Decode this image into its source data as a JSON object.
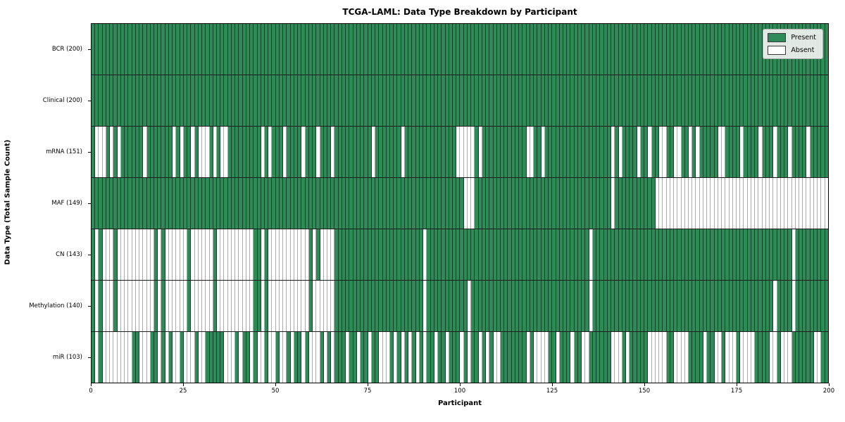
{
  "title": "TCGA-LAML: Data Type Breakdown by Participant",
  "colors": {
    "present": "#2e8b57",
    "absent": "#ffffff",
    "present_cell_border": "rgba(8,40,24,0.75)",
    "absent_cell_border": "#ababab",
    "plot_border": "#000000",
    "legend_background": "#f2f2f2"
  },
  "chart_data": {
    "type": "heatmap",
    "title": "TCGA-LAML: Data Type Breakdown by Participant",
    "xlabel": "Participant",
    "ylabel": "Data Type (Total Sample Count)",
    "x_range": [
      0,
      200
    ],
    "x_ticks": [
      0,
      25,
      50,
      75,
      100,
      125,
      150,
      175,
      200
    ],
    "n_participants": 200,
    "grid": false,
    "legend": {
      "position": "upper right",
      "entries": [
        {
          "label": "Present",
          "color": "#2e8b57"
        },
        {
          "label": "Absent",
          "color": "#ffffff"
        }
      ]
    },
    "value_encoding": {
      "present": 1,
      "absent": 0
    },
    "rows": [
      {
        "label": "BCR (200)",
        "data_type": "BCR",
        "present_total": 200,
        "absent_runs": []
      },
      {
        "label": "Clinical (200)",
        "data_type": "Clinical",
        "present_total": 200,
        "absent_runs": []
      },
      {
        "label": "mRNA (151)",
        "data_type": "mRNA",
        "present_total": 151,
        "absent_runs": [
          [
            1,
            3
          ],
          [
            5,
            5
          ],
          [
            7,
            7
          ],
          [
            14,
            14
          ],
          [
            22,
            22
          ],
          [
            24,
            24
          ],
          [
            27,
            27
          ],
          [
            29,
            31
          ],
          [
            33,
            33
          ],
          [
            35,
            36
          ],
          [
            46,
            46
          ],
          [
            48,
            48
          ],
          [
            52,
            52
          ],
          [
            57,
            57
          ],
          [
            61,
            61
          ],
          [
            65,
            65
          ],
          [
            76,
            76
          ],
          [
            84,
            84
          ],
          [
            99,
            103
          ],
          [
            105,
            105
          ],
          [
            118,
            119
          ],
          [
            122,
            122
          ],
          [
            141,
            141
          ],
          [
            143,
            143
          ],
          [
            148,
            148
          ],
          [
            151,
            151
          ],
          [
            154,
            155
          ],
          [
            158,
            159
          ],
          [
            162,
            162
          ],
          [
            164,
            164
          ],
          [
            170,
            171
          ],
          [
            176,
            176
          ],
          [
            181,
            181
          ],
          [
            185,
            185
          ],
          [
            189,
            189
          ],
          [
            194,
            194
          ]
        ]
      },
      {
        "label": "MAF (149)",
        "data_type": "MAF",
        "present_total": 149,
        "absent_runs": [
          [
            101,
            103
          ],
          [
            141,
            141
          ],
          [
            153,
            199
          ]
        ]
      },
      {
        "label": "CN (143)",
        "data_type": "CN",
        "present_total": 143,
        "absent_runs": [
          [
            1,
            1
          ],
          [
            3,
            5
          ],
          [
            7,
            16
          ],
          [
            18,
            18
          ],
          [
            20,
            25
          ],
          [
            27,
            32
          ],
          [
            34,
            43
          ],
          [
            46,
            46
          ],
          [
            48,
            58
          ],
          [
            60,
            60
          ],
          [
            62,
            65
          ],
          [
            90,
            90
          ],
          [
            135,
            135
          ],
          [
            190,
            190
          ]
        ]
      },
      {
        "label": "Methylation (140)",
        "data_type": "Methylation",
        "present_total": 140,
        "absent_runs": [
          [
            1,
            1
          ],
          [
            3,
            5
          ],
          [
            7,
            16
          ],
          [
            18,
            18
          ],
          [
            20,
            25
          ],
          [
            27,
            32
          ],
          [
            34,
            43
          ],
          [
            46,
            46
          ],
          [
            48,
            58
          ],
          [
            60,
            65
          ],
          [
            90,
            90
          ],
          [
            102,
            102
          ],
          [
            135,
            135
          ],
          [
            185,
            185
          ],
          [
            190,
            190
          ]
        ]
      },
      {
        "label": "miR (103)",
        "data_type": "miR",
        "present_total": 103,
        "absent_runs": [
          [
            1,
            1
          ],
          [
            3,
            10
          ],
          [
            13,
            15
          ],
          [
            18,
            18
          ],
          [
            20,
            20
          ],
          [
            22,
            23
          ],
          [
            25,
            27
          ],
          [
            29,
            30
          ],
          [
            36,
            38
          ],
          [
            40,
            40
          ],
          [
            43,
            43
          ],
          [
            45,
            46
          ],
          [
            48,
            49
          ],
          [
            51,
            52
          ],
          [
            54,
            54
          ],
          [
            57,
            57
          ],
          [
            59,
            61
          ],
          [
            63,
            63
          ],
          [
            65,
            65
          ],
          [
            69,
            69
          ],
          [
            72,
            72
          ],
          [
            75,
            75
          ],
          [
            78,
            80
          ],
          [
            82,
            82
          ],
          [
            84,
            84
          ],
          [
            86,
            86
          ],
          [
            88,
            88
          ],
          [
            90,
            90
          ],
          [
            93,
            93
          ],
          [
            96,
            96
          ],
          [
            100,
            100
          ],
          [
            102,
            102
          ],
          [
            105,
            105
          ],
          [
            107,
            107
          ],
          [
            109,
            110
          ],
          [
            118,
            118
          ],
          [
            120,
            123
          ],
          [
            126,
            126
          ],
          [
            130,
            130
          ],
          [
            133,
            134
          ],
          [
            141,
            143
          ],
          [
            145,
            145
          ],
          [
            151,
            155
          ],
          [
            158,
            161
          ],
          [
            166,
            166
          ],
          [
            169,
            170
          ],
          [
            172,
            174
          ],
          [
            176,
            179
          ],
          [
            184,
            185
          ],
          [
            187,
            189
          ],
          [
            196,
            197
          ]
        ]
      }
    ]
  }
}
